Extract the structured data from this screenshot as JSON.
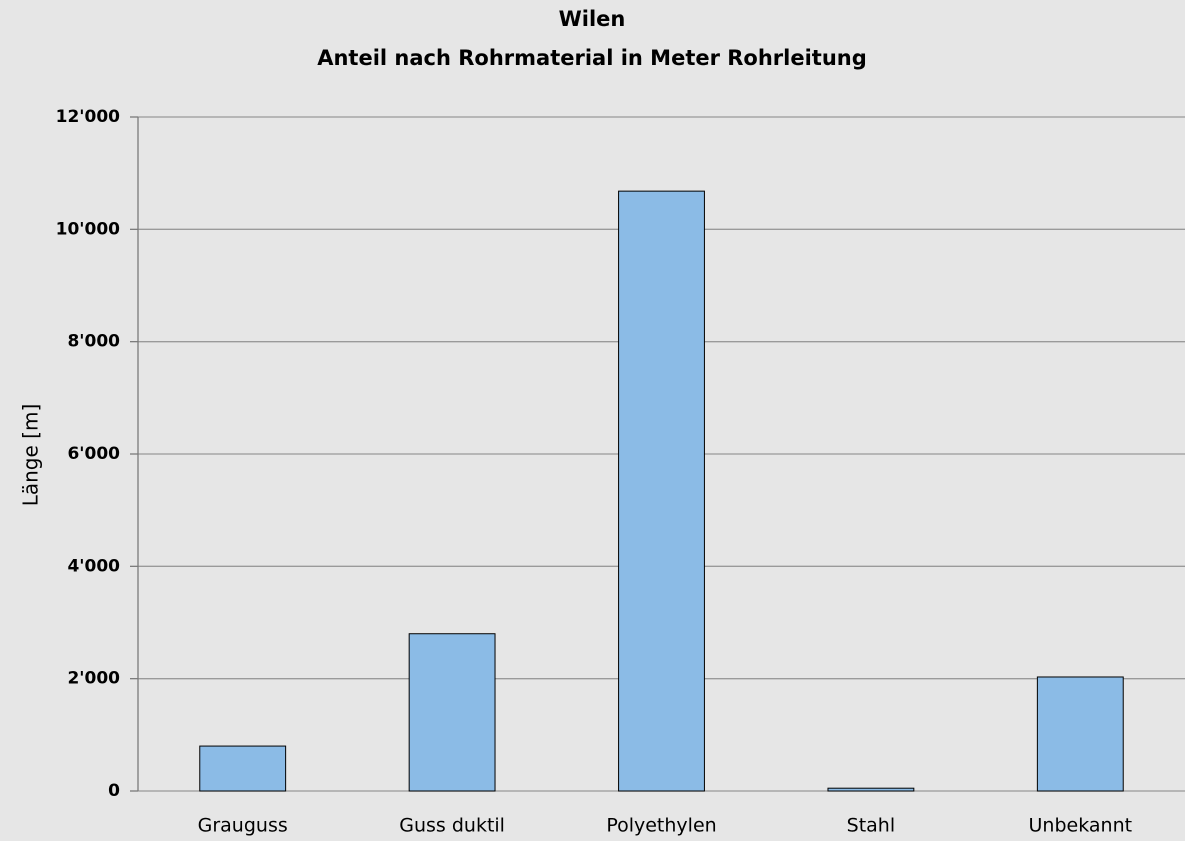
{
  "chart_data": {
    "type": "bar",
    "title": [
      "Wilen",
      "Anteil nach Rohrmaterial in Meter Rohrleitung"
    ],
    "y_label": "Länge [m]",
    "categories": [
      "Grauguss",
      "Guss duktil",
      "Polyethylen",
      "Stahl",
      "Unbekannt"
    ],
    "values": [
      800,
      2800,
      10680,
      50,
      2030
    ],
    "color": "#8bbbe6",
    "ylim": [
      0,
      12000
    ],
    "yticks": [
      0,
      {
        "value": 2000,
        "label": "2'000"
      },
      {
        "value": 4000,
        "label": "4'000"
      },
      {
        "value": 6000,
        "label": "6'000"
      },
      {
        "value": 8000,
        "label": "8'000"
      },
      {
        "value": 10000,
        "label": "10'000"
      },
      {
        "value": 12000,
        "label": "12'000"
      }
    ],
    "grid": true
  }
}
